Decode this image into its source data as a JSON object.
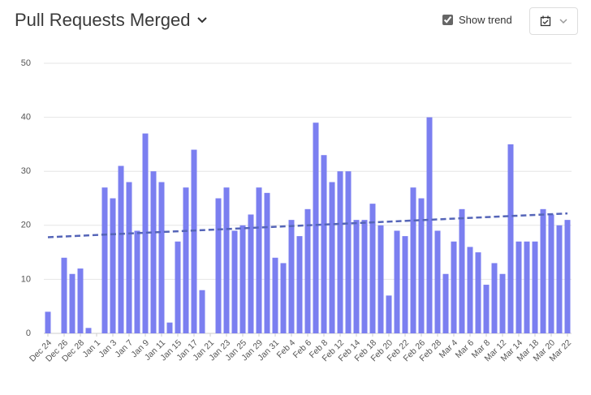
{
  "header": {
    "title": "Pull Requests Merged",
    "trend_label": "Show trend"
  },
  "chart_data": {
    "type": "bar",
    "categories": [
      "Dec 24",
      null,
      "Dec 26",
      null,
      "Dec 28",
      null,
      "Jan 1",
      null,
      "Jan 3",
      null,
      "Jan 7",
      null,
      "Jan 9",
      null,
      "Jan 11",
      null,
      "Jan 15",
      null,
      "Jan 17",
      null,
      "Jan 21",
      null,
      "Jan 23",
      null,
      "Jan 25",
      null,
      "Jan 29",
      null,
      "Jan 31",
      null,
      "Feb 4",
      null,
      "Feb 6",
      null,
      "Feb 8",
      null,
      "Feb 12",
      null,
      "Feb 14",
      null,
      "Feb 18",
      null,
      "Feb 20",
      null,
      "Feb 22",
      null,
      "Feb 26",
      null,
      "Feb 28",
      null,
      "Mar 4",
      null,
      "Mar 6",
      null,
      "Mar 8",
      null,
      "Mar 12",
      null,
      "Mar 14",
      null,
      "Mar 18",
      null,
      "Mar 20",
      null,
      "Mar 22"
    ],
    "values": [
      4,
      0,
      14,
      11,
      12,
      1,
      0,
      27,
      25,
      31,
      28,
      19,
      37,
      30,
      28,
      2,
      17,
      27,
      34,
      8,
      0,
      25,
      27,
      19,
      20,
      22,
      27,
      26,
      14,
      13,
      21,
      18,
      23,
      39,
      33,
      28,
      30,
      30,
      21,
      21,
      24,
      20,
      7,
      19,
      18,
      27,
      25,
      40,
      19,
      11,
      17,
      23,
      16,
      15,
      9,
      13,
      11,
      35,
      17,
      17,
      17,
      23,
      22,
      20,
      21
    ],
    "color": "#7b7ff0",
    "trend": {
      "values": [
        17.8,
        22.2
      ],
      "color": "#5565b8"
    },
    "show_trend": true,
    "ylim": [
      0,
      50
    ],
    "yticks": [
      0,
      10,
      20,
      30,
      40,
      50
    ],
    "grid": true
  }
}
